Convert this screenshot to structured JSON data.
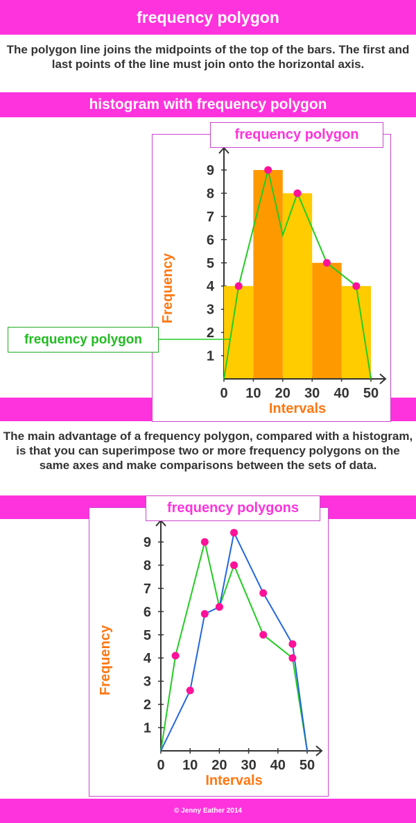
{
  "header": {
    "title": "frequency polygon",
    "intro": "The polygon line joins the midpoints of the top of the bars. The first and last points of the line must join onto the horizontal axis.",
    "section_title": "histogram with frequency polygon"
  },
  "chart1": {
    "box_title": "frequency polygon",
    "callout": "frequency polygon"
  },
  "advantage": "The main advantage of a frequency polygon, compared with a histogram, is that you can superimpose two or more frequency polygons on the same axes and make comparisons between the sets of data.",
  "chart2": {
    "box_title": "frequency polygons"
  },
  "footer": "© Jenny Eather 2014",
  "colors": {
    "band": "#ff33dd",
    "bar_light": "#ffcc00",
    "bar_dark": "#ff9900",
    "polygon_green": "#22cc22",
    "polygon_blue": "#2266dd",
    "point": "#ff1199",
    "axis_label": "#ff7711"
  },
  "chart_data": [
    {
      "type": "bar",
      "xlabel": "Intervals",
      "ylabel": "Frequency",
      "x_ticks": [
        "0",
        "10",
        "20",
        "30",
        "40",
        "50"
      ],
      "y_ticks": [
        "1",
        "2",
        "3",
        "4",
        "5",
        "6",
        "7",
        "8",
        "9"
      ],
      "xlim": [
        0,
        50
      ],
      "ylim": [
        0,
        9
      ],
      "bins": [
        [
          0,
          10
        ],
        [
          10,
          20
        ],
        [
          20,
          30
        ],
        [
          30,
          40
        ],
        [
          40,
          50
        ]
      ],
      "values": [
        4,
        9,
        8,
        5,
        4
      ],
      "polygon": {
        "x": [
          0,
          5,
          15,
          20,
          25,
          35,
          45,
          50
        ],
        "y": [
          0,
          4,
          9,
          6.2,
          8,
          5,
          4,
          0
        ],
        "marked_points": [
          [
            5,
            4
          ],
          [
            15,
            9
          ],
          [
            25,
            8
          ],
          [
            35,
            5
          ],
          [
            45,
            4
          ]
        ]
      }
    },
    {
      "type": "line",
      "xlabel": "Intervals",
      "ylabel": "Frequency",
      "x_ticks": [
        "0",
        "10",
        "20",
        "30",
        "40",
        "50"
      ],
      "y_ticks": [
        "1",
        "2",
        "3",
        "4",
        "5",
        "6",
        "7",
        "8",
        "9"
      ],
      "xlim": [
        0,
        50
      ],
      "ylim": [
        0,
        9
      ],
      "series": [
        {
          "color": "green",
          "x": [
            0,
            5,
            15,
            20,
            25,
            35,
            45,
            50
          ],
          "y": [
            0,
            4.1,
            9,
            6.2,
            8,
            5,
            4,
            0
          ],
          "marked_points": [
            [
              5,
              4.1
            ],
            [
              15,
              9
            ],
            [
              20,
              6.2
            ],
            [
              25,
              8
            ],
            [
              35,
              5
            ],
            [
              45,
              4
            ]
          ]
        },
        {
          "color": "blue",
          "x": [
            0,
            10,
            15,
            20,
            25,
            35,
            45,
            50
          ],
          "y": [
            0,
            2.6,
            5.9,
            6.2,
            9.4,
            6.8,
            4.6,
            0
          ],
          "marked_points": [
            [
              10,
              2.6
            ],
            [
              15,
              5.9
            ],
            [
              20,
              6.2
            ],
            [
              25,
              9.4
            ],
            [
              35,
              6.8
            ],
            [
              45,
              4.6
            ]
          ]
        }
      ]
    }
  ]
}
